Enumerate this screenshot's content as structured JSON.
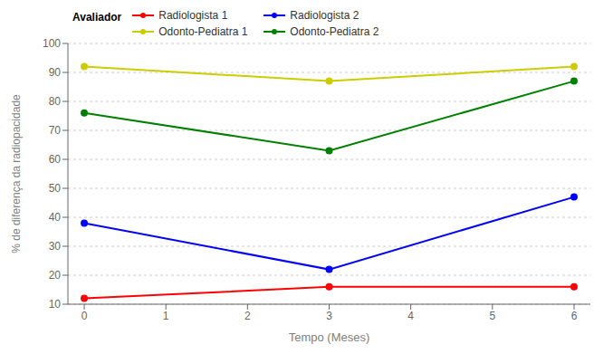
{
  "chart_data": {
    "type": "line",
    "x": [
      0,
      3,
      6
    ],
    "series": [
      {
        "name": "Radiologista 1",
        "color": "#FF0000",
        "values": [
          12,
          16,
          16
        ],
        "marker": "circle"
      },
      {
        "name": "Radiologista 2",
        "color": "#0000FF",
        "values": [
          38,
          22,
          47
        ],
        "marker": "circle"
      },
      {
        "name": "Odonto-Pediatra 1",
        "color": "#CCCC00",
        "values": [
          92,
          87,
          92
        ],
        "marker": "circle"
      },
      {
        "name": "Odonto-Pediatra 2",
        "color": "#008000",
        "values": [
          76,
          63,
          87
        ],
        "marker": "circle"
      }
    ],
    "xlabel": "Tempo (Meses)",
    "ylabel": "% de diferença da radiopacidade",
    "xlim": [
      -0.2,
      6.2
    ],
    "ylim": [
      10,
      100
    ],
    "xticks": [
      0,
      1,
      2,
      3,
      4,
      5,
      6
    ],
    "yticks": [
      10,
      20,
      30,
      40,
      50,
      60,
      70,
      80,
      90,
      100
    ],
    "legend_title": "Avaliador",
    "legend": "top",
    "grid": "y"
  }
}
